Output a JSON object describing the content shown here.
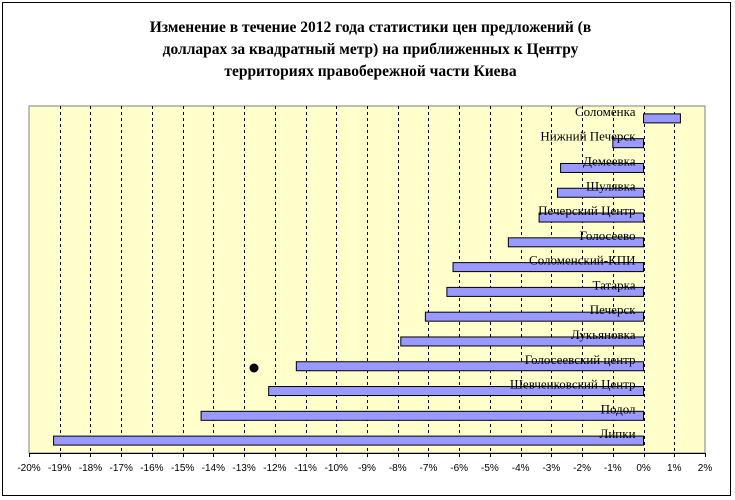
{
  "chart_data": {
    "type": "bar",
    "orientation": "horizontal",
    "title": "Изменение в течение 2012 года статистики цен предложений (в долларах за квадратный метр) на приближенных к Центру территориях правобережной части Киева",
    "title_lines": [
      "Изменение в течение 2012 года статистики цен предложений (в",
      "долларах за квадратный метр) на приближенных к Центру",
      "территориях правобережной части Киева"
    ],
    "categories": [
      "Соломенка",
      "Нижний Печерск",
      "Демеевка",
      "Шулявка",
      "Печерский Центр",
      "Голосеево",
      "Соломенский-КПИ",
      "Татарка",
      "Печерск",
      "Лукьяновка",
      "Голосеевский центр",
      "Шевченковский Центр",
      "Подол",
      "Липки"
    ],
    "values": [
      1.2,
      -1.0,
      -2.7,
      -2.8,
      -3.4,
      -4.4,
      -6.2,
      -6.4,
      -7.1,
      -7.9,
      -11.3,
      -12.2,
      -14.4,
      -19.2
    ],
    "value_unit": "%",
    "xlim": [
      -20,
      2
    ],
    "xticks": [
      -20,
      -19,
      -18,
      -17,
      -16,
      -15,
      -14,
      -13,
      -12,
      -11,
      -10,
      -9,
      -8,
      -7,
      -6,
      -5,
      -4,
      -3,
      -2,
      -1,
      0,
      1,
      2
    ],
    "xtick_labels": [
      "-20%",
      "-19%",
      "-18%",
      "-17%",
      "-16%",
      "-15%",
      "-14%",
      "-13%",
      "-12%",
      "-11%",
      "-10%",
      "-9%",
      "-8%",
      "-7%",
      "-6%",
      "-5%",
      "-4%",
      "-3%",
      "-2%",
      "-1%",
      "0%",
      "1%",
      "2%"
    ],
    "grid": "vertical dashed",
    "legend": "none",
    "xlabel": "",
    "ylabel": "",
    "colors": {
      "plot_background": "#FFFFCC",
      "bar_fill": "#9999FF",
      "bar_stroke": "#000000",
      "grid": "#000000"
    }
  }
}
